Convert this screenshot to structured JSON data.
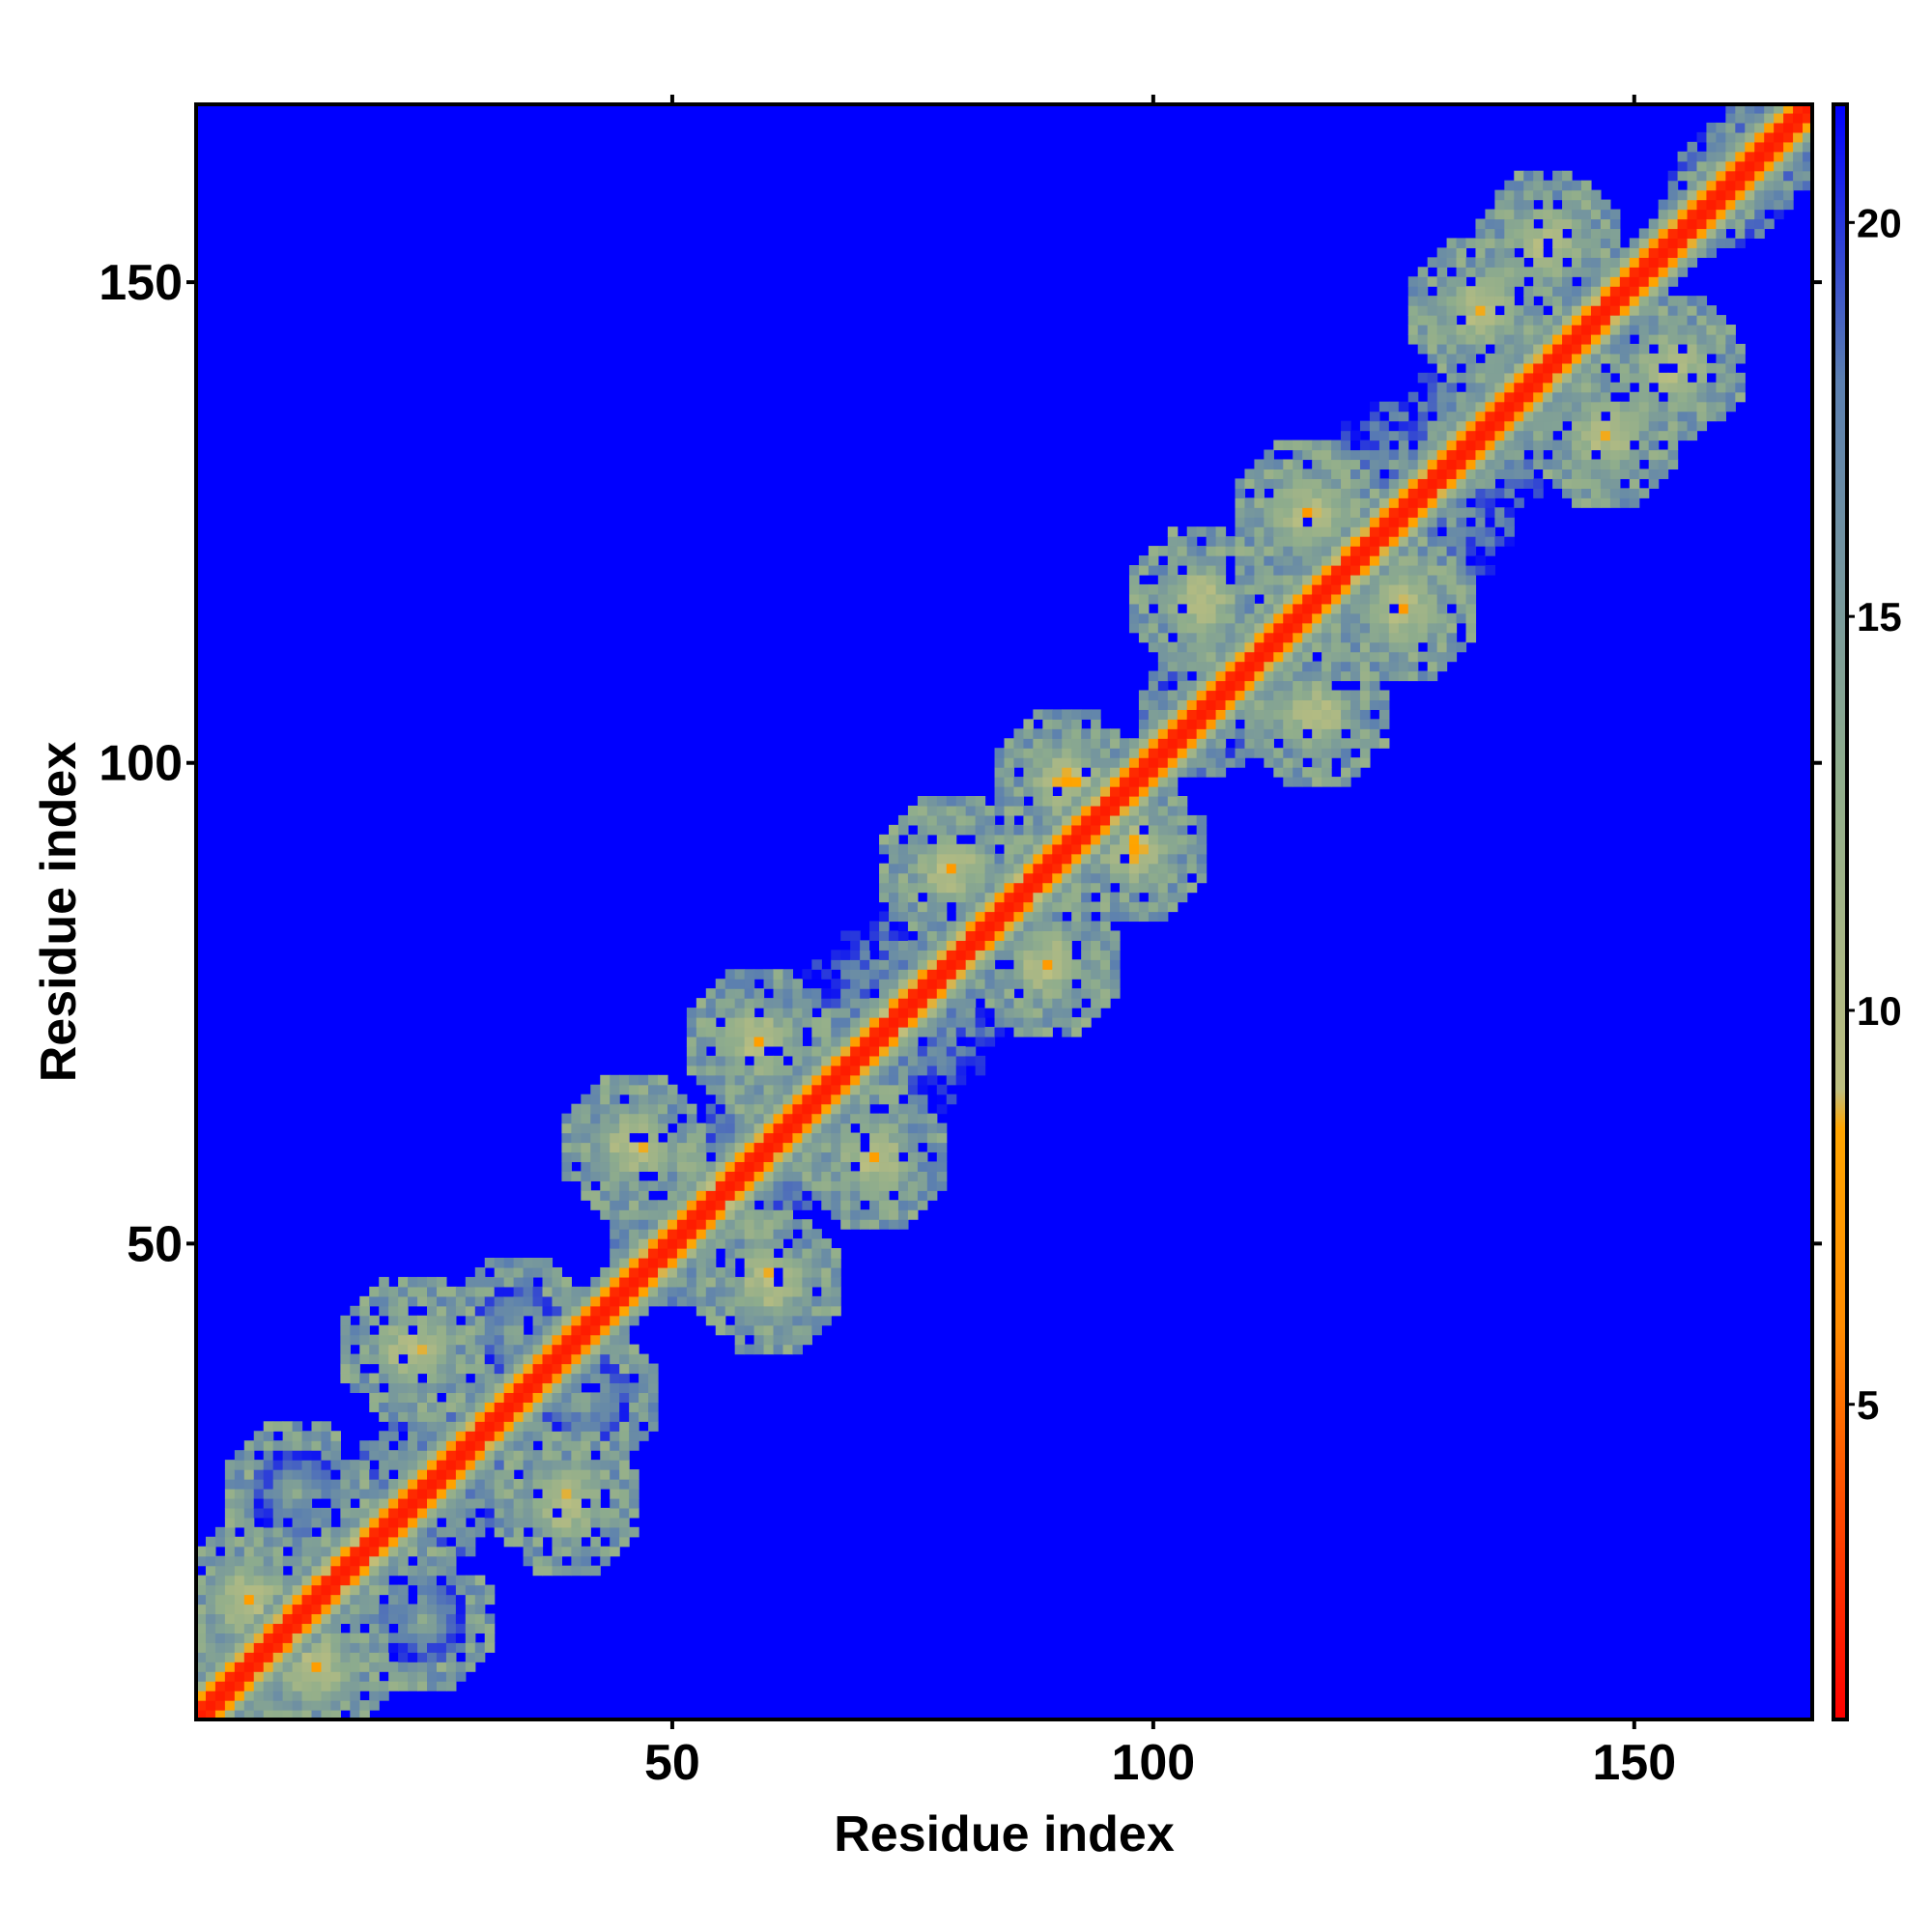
{
  "chart_data": {
    "type": "heatmap",
    "title": "",
    "xlabel": "Residue index",
    "ylabel": "Residue index",
    "xlim": [
      1,
      168
    ],
    "ylim": [
      1,
      168
    ],
    "x_ticks": [
      50,
      100,
      150
    ],
    "y_ticks": [
      50,
      100,
      150
    ],
    "grid": false,
    "matrix_size": 168,
    "colorbar": {
      "range": [
        1,
        21.5
      ],
      "ticks": [
        5,
        10,
        15,
        20
      ],
      "placement": "right",
      "stops": [
        {
          "value": 1,
          "color": "#ff0000"
        },
        {
          "value": 6,
          "color": "#ff8c00"
        },
        {
          "value": 8.5,
          "color": "#ffa500"
        },
        {
          "value": 9,
          "color": "#bdbf80"
        },
        {
          "value": 13,
          "color": "#8fad8c"
        },
        {
          "value": 18,
          "color": "#5b7fb0"
        },
        {
          "value": 21.5,
          "color": "#0000ff"
        }
      ]
    },
    "structure": {
      "diagonal_value": 2,
      "near_diagonal_values": [
        4,
        7,
        11,
        14
      ],
      "background_value": 21.5,
      "contact_cutoff": 20,
      "contact_clusters": [
        {
          "i": 38,
          "j": 22,
          "value": 7
        },
        {
          "i": 59,
          "j": 45,
          "value": 7
        },
        {
          "i": 70,
          "j": 58,
          "value": 7
        },
        {
          "i": 88,
          "j": 78,
          "value": 7
        },
        {
          "i": 97,
          "j": 90,
          "value": 7
        },
        {
          "i": 116,
          "j": 104,
          "value": 7
        },
        {
          "i": 125,
          "j": 115,
          "value": 7
        },
        {
          "i": 146,
          "j": 133,
          "value": 7
        },
        {
          "i": 153,
          "j": 140,
          "value": 7
        },
        {
          "i": 12,
          "j": 5,
          "value": 7
        },
        {
          "i": 23,
          "j": 10,
          "value": 12
        },
        {
          "i": 40,
          "j": 33,
          "value": 12
        }
      ]
    },
    "colors": {
      "background": "#0000ff",
      "frame": "#000000"
    }
  }
}
